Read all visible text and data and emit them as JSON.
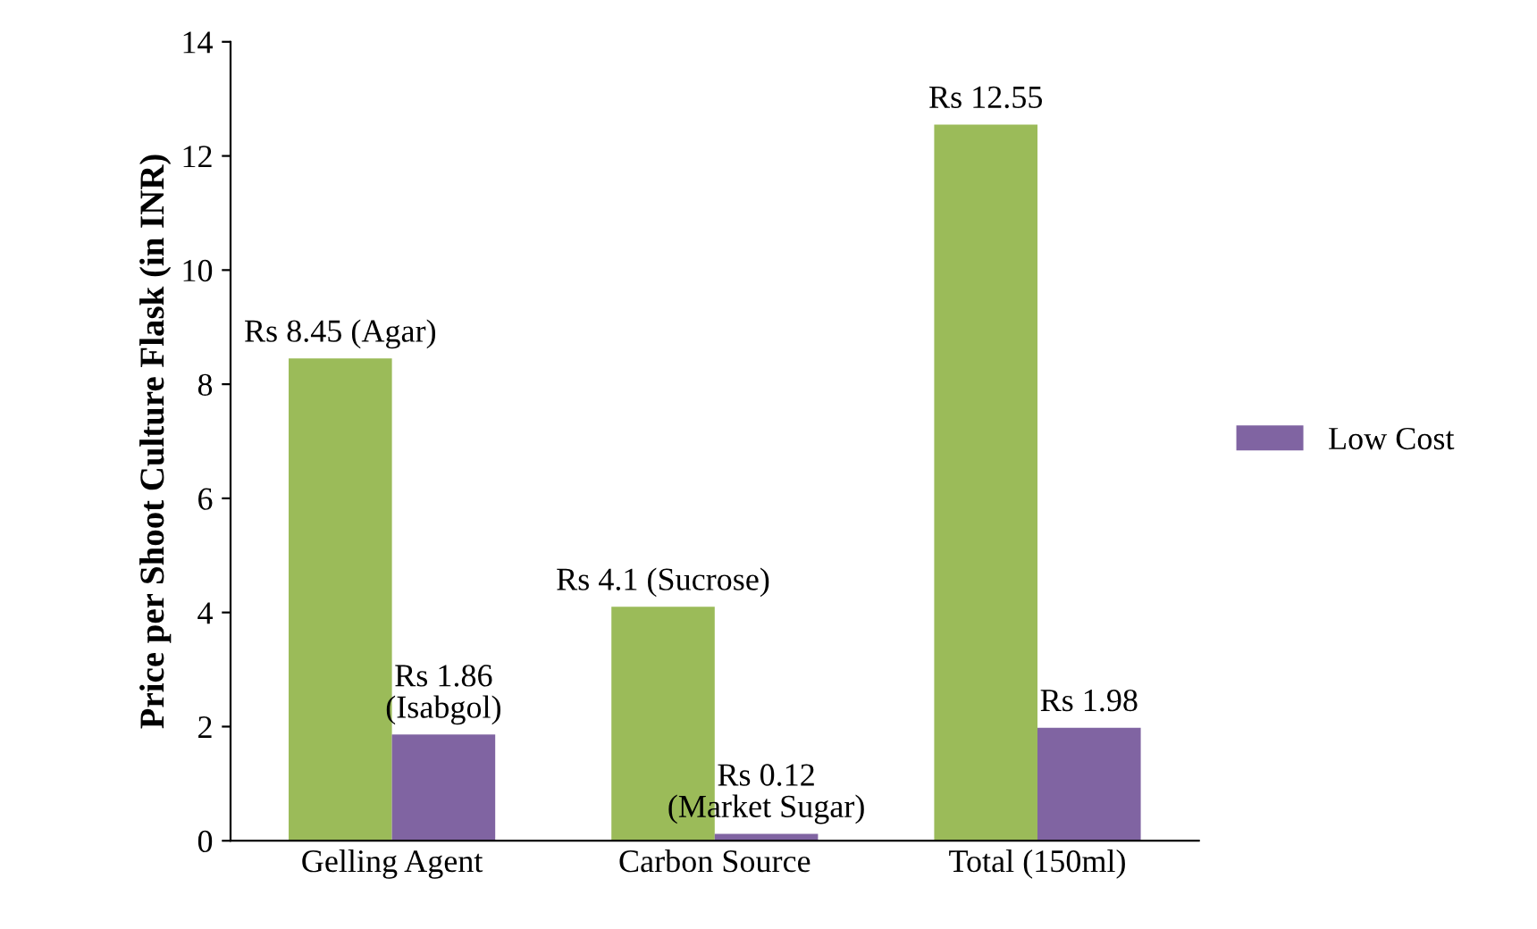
{
  "chart_data": {
    "type": "bar",
    "ylabel": "Price per Shoot Culture Flask (in INR)",
    "categories": [
      "Gelling Agent",
      "Carbon Source",
      "Total (150ml)"
    ],
    "series": [
      {
        "color": "#9bbb59",
        "values": [
          8.45,
          4.1,
          12.55
        ],
        "value_labels": [
          "Rs 8.45 (Agar)",
          "Rs 4.1 (Sucrose)",
          "Rs 12.55"
        ]
      },
      {
        "name": "Low Cost",
        "color": "#8064a2",
        "values": [
          1.86,
          0.12,
          1.98
        ],
        "value_labels": [
          "Rs 1.86\n(Isabgol)",
          "Rs 0.12\n(Market Sugar)",
          "Rs 1.98"
        ]
      }
    ],
    "ylim": [
      0,
      14
    ],
    "yticks": [
      0,
      2,
      4,
      6,
      8,
      10,
      12,
      14
    ],
    "grid": false,
    "legend": "right"
  }
}
